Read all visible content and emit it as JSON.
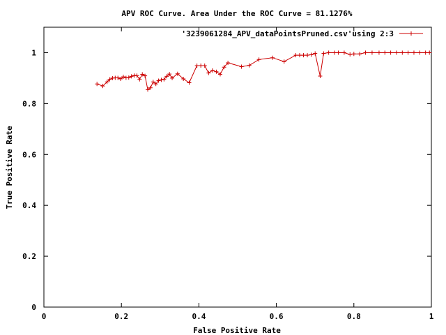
{
  "chart_data": {
    "type": "line",
    "title": "APV ROC Curve.  Area Under the ROC Curve = 81.1276%",
    "xlabel": "False Positive Rate",
    "ylabel": "True Positive Rate",
    "xlim": [
      0,
      1
    ],
    "ylim": [
      0,
      1.1
    ],
    "x_ticks": [
      "0",
      "0.2",
      "0.4",
      "0.6",
      "0.8",
      "1"
    ],
    "y_ticks": [
      "0",
      "0.2",
      "0.4",
      "0.6",
      "0.8",
      "1"
    ],
    "x_tick_values": [
      0,
      0.2,
      0.4,
      0.6,
      0.8,
      1
    ],
    "y_tick_values": [
      0,
      0.2,
      0.4,
      0.6,
      0.8,
      1
    ],
    "grid": false,
    "legend_position": "top-right",
    "series": [
      {
        "name": "'3239061284_APV_dataPointsPruned.csv'using 2:3",
        "color": "#cc0000",
        "marker": "plus",
        "points": [
          [
            0.137,
            0.877
          ],
          [
            0.152,
            0.869
          ],
          [
            0.163,
            0.885
          ],
          [
            0.17,
            0.895
          ],
          [
            0.177,
            0.9
          ],
          [
            0.184,
            0.901
          ],
          [
            0.191,
            0.901
          ],
          [
            0.198,
            0.897
          ],
          [
            0.205,
            0.905
          ],
          [
            0.212,
            0.901
          ],
          [
            0.219,
            0.902
          ],
          [
            0.226,
            0.907
          ],
          [
            0.233,
            0.91
          ],
          [
            0.24,
            0.91
          ],
          [
            0.247,
            0.895
          ],
          [
            0.254,
            0.915
          ],
          [
            0.261,
            0.909
          ],
          [
            0.268,
            0.855
          ],
          [
            0.275,
            0.862
          ],
          [
            0.282,
            0.885
          ],
          [
            0.289,
            0.877
          ],
          [
            0.296,
            0.89
          ],
          [
            0.303,
            0.893
          ],
          [
            0.31,
            0.895
          ],
          [
            0.317,
            0.907
          ],
          [
            0.324,
            0.916
          ],
          [
            0.331,
            0.9
          ],
          [
            0.345,
            0.917
          ],
          [
            0.36,
            0.897
          ],
          [
            0.375,
            0.882
          ],
          [
            0.395,
            0.949
          ],
          [
            0.405,
            0.949
          ],
          [
            0.415,
            0.949
          ],
          [
            0.425,
            0.92
          ],
          [
            0.435,
            0.93
          ],
          [
            0.445,
            0.925
          ],
          [
            0.455,
            0.915
          ],
          [
            0.465,
            0.943
          ],
          [
            0.475,
            0.96
          ],
          [
            0.51,
            0.945
          ],
          [
            0.53,
            0.95
          ],
          [
            0.555,
            0.973
          ],
          [
            0.59,
            0.98
          ],
          [
            0.62,
            0.965
          ],
          [
            0.65,
            0.99
          ],
          [
            0.66,
            0.99
          ],
          [
            0.67,
            0.99
          ],
          [
            0.68,
            0.99
          ],
          [
            0.69,
            0.992
          ],
          [
            0.7,
            0.997
          ],
          [
            0.713,
            0.908
          ],
          [
            0.722,
            0.997
          ],
          [
            0.735,
            1.0
          ],
          [
            0.75,
            1.0
          ],
          [
            0.76,
            1.0
          ],
          [
            0.775,
            1.0
          ],
          [
            0.79,
            0.993
          ],
          [
            0.8,
            0.995
          ],
          [
            0.815,
            0.995
          ],
          [
            0.83,
            1.0
          ],
          [
            0.847,
            1.0
          ],
          [
            0.865,
            1.0
          ],
          [
            0.88,
            1.0
          ],
          [
            0.895,
            1.0
          ],
          [
            0.91,
            1.0
          ],
          [
            0.925,
            1.0
          ],
          [
            0.94,
            1.0
          ],
          [
            0.955,
            1.0
          ],
          [
            0.97,
            1.0
          ],
          [
            0.985,
            1.0
          ],
          [
            0.995,
            1.0
          ]
        ]
      }
    ]
  }
}
